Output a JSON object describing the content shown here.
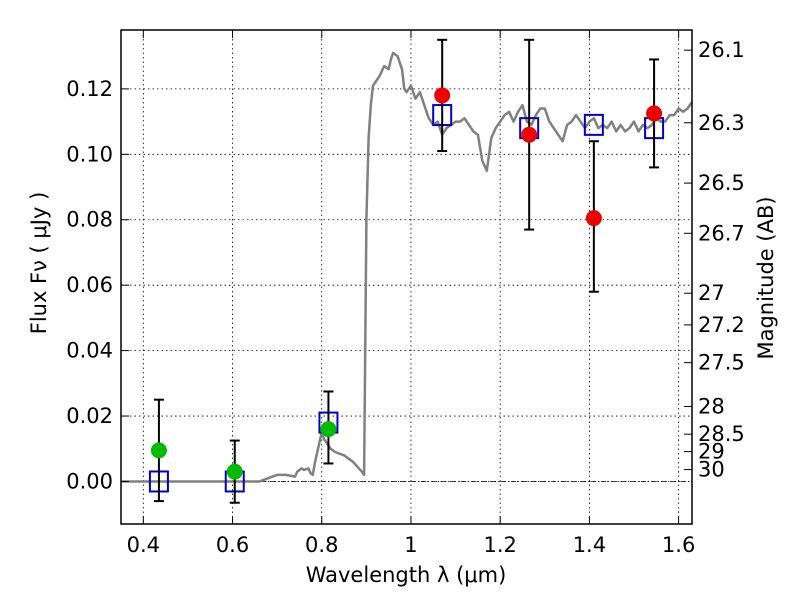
{
  "chart_data": {
    "type": "scatter",
    "xlabel": "Wavelength  λ (μm)",
    "ylabel": "Flux  Fν  ( μJy )",
    "y2label": "Magnitude (AB)",
    "xlim": [
      0.35,
      1.63
    ],
    "ylim": [
      -0.013,
      0.138
    ],
    "xticks": [
      0.4,
      0.6,
      0.8,
      1.0,
      1.2,
      1.4,
      1.6
    ],
    "xtick_labels": [
      "0.4",
      "0.6",
      "0.8",
      "1",
      "1.2",
      "1.4",
      "1.6"
    ],
    "yticks": [
      0.0,
      0.02,
      0.04,
      0.06,
      0.08,
      0.1,
      0.12
    ],
    "ytick_labels": [
      "0.00",
      "0.02",
      "0.04",
      "0.06",
      "0.08",
      "0.10",
      "0.12"
    ],
    "mag_ticks": [
      26.1,
      26.3,
      26.5,
      26.7,
      27,
      27.2,
      27.5,
      28,
      28.5,
      29,
      30
    ],
    "mag_tick_labels": [
      "26.1",
      "26.3",
      "26.5",
      "26.7",
      "27",
      "27.2",
      "27.5",
      "28",
      "28.5",
      "29",
      "30"
    ],
    "grid": true,
    "zero_line": true,
    "series": [
      {
        "kind": "line",
        "color": "#808080",
        "x": [
          0.35,
          0.6,
          0.66,
          0.68,
          0.7,
          0.72,
          0.74,
          0.745,
          0.755,
          0.76,
          0.77,
          0.775,
          0.78,
          0.785,
          0.79,
          0.795,
          0.8,
          0.805,
          0.81,
          0.815,
          0.82,
          0.83,
          0.85,
          0.87,
          0.89,
          0.895,
          0.9,
          0.905,
          0.91,
          0.915,
          0.92,
          0.93,
          0.94,
          0.95,
          0.955,
          0.96,
          0.97,
          0.975,
          0.98,
          0.985,
          0.99,
          1.0,
          1.01,
          1.02,
          1.03,
          1.04,
          1.05,
          1.06,
          1.07,
          1.08,
          1.09,
          1.1,
          1.11,
          1.12,
          1.13,
          1.14,
          1.15,
          1.16,
          1.17,
          1.18,
          1.19,
          1.2,
          1.21,
          1.22,
          1.23,
          1.24,
          1.25,
          1.26,
          1.27,
          1.28,
          1.29,
          1.3,
          1.31,
          1.32,
          1.33,
          1.34,
          1.35,
          1.36,
          1.37,
          1.38,
          1.39,
          1.4,
          1.41,
          1.42,
          1.43,
          1.44,
          1.45,
          1.46,
          1.47,
          1.48,
          1.49,
          1.5,
          1.51,
          1.52,
          1.53,
          1.54,
          1.55,
          1.56,
          1.57,
          1.58,
          1.59,
          1.6,
          1.61,
          1.62,
          1.63
        ],
        "y": [
          0.0,
          0.0,
          0.0,
          0.001,
          0.002,
          0.002,
          0.0015,
          0.003,
          0.004,
          0.0035,
          0.004,
          0.0025,
          0.002,
          0.006,
          0.009,
          0.012,
          0.015,
          0.013,
          0.012,
          0.011,
          0.01,
          0.009,
          0.008,
          0.006,
          0.003,
          0.002,
          0.08,
          0.105,
          0.115,
          0.121,
          0.122,
          0.124,
          0.127,
          0.126,
          0.129,
          0.131,
          0.13,
          0.128,
          0.126,
          0.12,
          0.119,
          0.121,
          0.117,
          0.119,
          0.115,
          0.111,
          0.109,
          0.11,
          0.106,
          0.108,
          0.109,
          0.11,
          0.11,
          0.111,
          0.109,
          0.107,
          0.106,
          0.098,
          0.095,
          0.105,
          0.108,
          0.11,
          0.112,
          0.113,
          0.11,
          0.113,
          0.115,
          0.11,
          0.109,
          0.112,
          0.114,
          0.114,
          0.11,
          0.108,
          0.106,
          0.104,
          0.109,
          0.11,
          0.112,
          0.11,
          0.108,
          0.11,
          0.111,
          0.108,
          0.109,
          0.108,
          0.11,
          0.107,
          0.109,
          0.107,
          0.108,
          0.11,
          0.107,
          0.109,
          0.108,
          0.109,
          0.111,
          0.11,
          0.11,
          0.112,
          0.112,
          0.114,
          0.113,
          0.114,
          0.116
        ]
      },
      {
        "kind": "open-square",
        "color": "#0000cc",
        "x": [
          0.435,
          0.605,
          0.815,
          1.07,
          1.265,
          1.41,
          1.545
        ],
        "y": [
          0.0,
          0.0,
          0.018,
          0.112,
          0.108,
          0.109,
          0.108
        ]
      },
      {
        "kind": "filled-circle",
        "color": "#00bb00",
        "x": [
          0.435,
          0.605,
          0.815
        ],
        "y": [
          0.0095,
          0.003,
          0.016
        ],
        "err_low": [
          0.0155,
          0.0095,
          0.0105
        ],
        "err_high": [
          0.0155,
          0.0095,
          0.0115
        ]
      },
      {
        "kind": "filled-circle",
        "color": "#ee0000",
        "x": [
          1.07,
          1.265,
          1.41,
          1.545
        ],
        "y": [
          0.118,
          0.106,
          0.0805,
          0.1125
        ],
        "err_low": [
          0.017,
          0.029,
          0.0225,
          0.0165
        ],
        "err_high": [
          0.017,
          0.029,
          0.0235,
          0.0165
        ]
      }
    ]
  }
}
